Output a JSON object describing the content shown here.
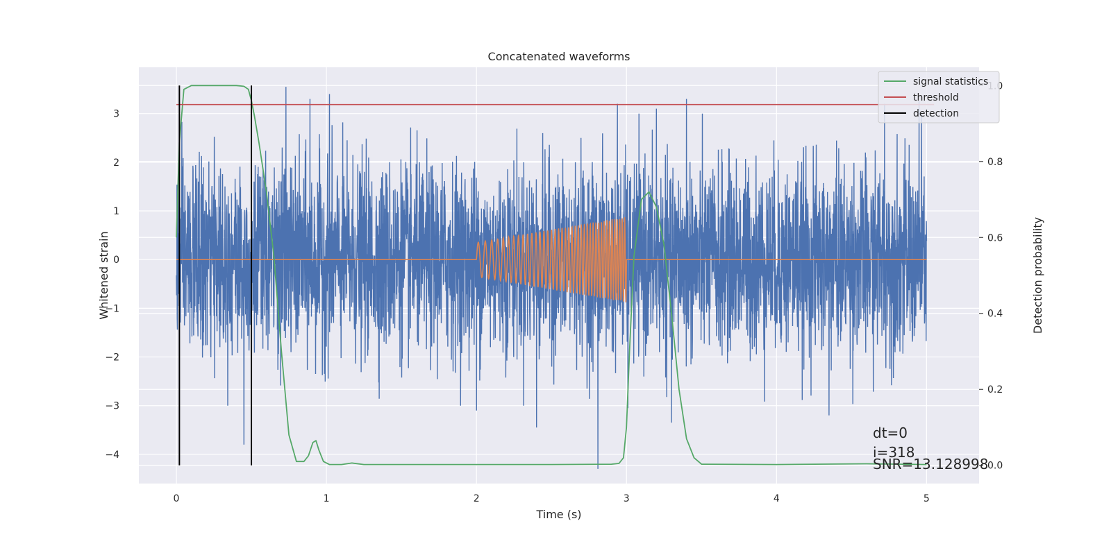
{
  "chart_data": {
    "type": "line",
    "title": "Concatenated waveforms",
    "xlabel": "Time (s)",
    "ylabel": "Whitened strain",
    "ylabel_right": "Detection probability",
    "xlim": [
      -0.25,
      5.35
    ],
    "ylim": [
      -4.6,
      3.95
    ],
    "ylim_right": [
      -0.048,
      1.048
    ],
    "x_ticks": [
      0,
      1,
      2,
      3,
      4,
      5
    ],
    "y_ticks": [
      -4,
      -3,
      -2,
      -1,
      0,
      1,
      2,
      3
    ],
    "y_ticks_right": [
      0.0,
      0.2,
      0.4,
      0.6,
      0.8,
      1.0
    ],
    "grid": true,
    "legend_position": "top-right",
    "colors": {
      "strain": "#4c72b0",
      "template": "#dd8452",
      "signal_statistics": "#55a868",
      "threshold": "#c44e52",
      "detection": "#000000",
      "background": "#eaeaf2",
      "grid": "#ffffff"
    },
    "series": [
      {
        "name": "signal statistics",
        "axis": "right",
        "x": [
          0,
          0.02,
          0.05,
          0.1,
          0.2,
          0.3,
          0.4,
          0.45,
          0.48,
          0.5,
          0.52,
          0.55,
          0.6,
          0.65,
          0.7,
          0.75,
          0.8,
          0.85,
          0.88,
          0.91,
          0.93,
          0.95,
          0.98,
          1.02,
          1.1,
          1.17,
          1.25,
          1.5,
          2.0,
          2.5,
          2.9,
          2.95,
          2.98,
          3.0,
          3.02,
          3.05,
          3.1,
          3.15,
          3.2,
          3.25,
          3.3,
          3.35,
          3.4,
          3.45,
          3.5,
          4.0,
          4.6,
          5.0
        ],
        "y": [
          0.6,
          0.85,
          0.99,
          1.0,
          1.0,
          1.0,
          1.0,
          0.998,
          0.99,
          0.96,
          0.92,
          0.85,
          0.72,
          0.55,
          0.3,
          0.08,
          0.01,
          0.01,
          0.025,
          0.06,
          0.065,
          0.04,
          0.01,
          0.002,
          0.002,
          0.006,
          0.002,
          0.002,
          0.002,
          0.002,
          0.003,
          0.005,
          0.02,
          0.1,
          0.3,
          0.55,
          0.7,
          0.72,
          0.68,
          0.58,
          0.4,
          0.2,
          0.07,
          0.02,
          0.003,
          0.002,
          0.004,
          0.002
        ]
      },
      {
        "name": "threshold",
        "axis": "right",
        "x": [
          0,
          5.05
        ],
        "y": [
          0.95,
          0.95
        ]
      },
      {
        "name": "detection",
        "axis": "right",
        "x": [
          0.02,
          0.5
        ],
        "y_range": [
          0.0,
          1.0
        ]
      },
      {
        "name": "",
        "axis": "left",
        "kind": "noise",
        "x_range": [
          0,
          5
        ],
        "amplitude_std": 0.95,
        "spikes": [
          {
            "x": 0.45,
            "y": -3.8
          },
          {
            "x": 0.73,
            "y": 3.55
          },
          {
            "x": 0.89,
            "y": 3.3
          },
          {
            "x": 1.02,
            "y": 3.4
          },
          {
            "x": 2.0,
            "y": -3.1
          },
          {
            "x": 2.4,
            "y": -3.45
          },
          {
            "x": 2.81,
            "y": -4.3
          },
          {
            "x": 2.94,
            "y": 3.2
          },
          {
            "x": 3.01,
            "y": -3.05
          },
          {
            "x": 3.2,
            "y": 3.1
          },
          {
            "x": 3.3,
            "y": -3.35
          },
          {
            "x": 3.4,
            "y": 3.3
          },
          {
            "x": 4.35,
            "y": -3.2
          },
          {
            "x": 4.72,
            "y": 3.2
          },
          {
            "x": 4.95,
            "y": 3.25
          }
        ]
      },
      {
        "name": "",
        "axis": "left",
        "kind": "chirp",
        "x_range": [
          0,
          5
        ],
        "active_range": [
          2.0,
          3.0
        ],
        "amplitude_start": 0.35,
        "amplitude_end": 0.88,
        "freq_start": 20,
        "freq_end": 62
      }
    ],
    "legend": [
      "signal statistics",
      "threshold",
      "detection"
    ],
    "annotations": [
      "dt=0",
      "i=318",
      "SNR=13.128998"
    ]
  }
}
